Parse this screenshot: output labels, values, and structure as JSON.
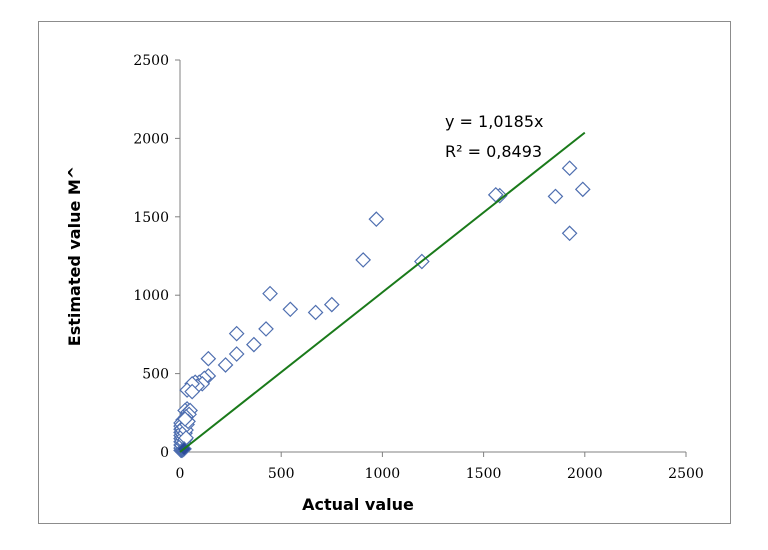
{
  "chart_data": {
    "type": "scatter",
    "xlabel": "Actual value",
    "ylabel": "Estimated value M^",
    "xlim": [
      0,
      2500
    ],
    "ylim": [
      0,
      2500
    ],
    "xticks": [
      "0",
      "500",
      "1000",
      "1500",
      "2000",
      "2500"
    ],
    "yticks": [
      "0",
      "500",
      "1000",
      "1500",
      "2000",
      "2500"
    ],
    "grid": false,
    "marker_color": "#4f6fb0",
    "trendline_color": "#1a7a1a",
    "series": [
      {
        "marker": "diamond-open",
        "points": [
          [
            1580,
            1635
          ],
          [
            1560,
            1640
          ],
          [
            1925,
            1810
          ],
          [
            1990,
            1675
          ],
          [
            1855,
            1630
          ],
          [
            1925,
            1395
          ],
          [
            970,
            1485
          ],
          [
            905,
            1225
          ],
          [
            1195,
            1215
          ],
          [
            445,
            1010
          ],
          [
            545,
            910
          ],
          [
            670,
            890
          ],
          [
            750,
            940
          ],
          [
            280,
            755
          ],
          [
            425,
            785
          ],
          [
            365,
            685
          ],
          [
            280,
            625
          ],
          [
            225,
            555
          ],
          [
            140,
            595
          ],
          [
            140,
            485
          ],
          [
            120,
            470
          ],
          [
            95,
            445
          ],
          [
            75,
            445
          ],
          [
            110,
            435
          ],
          [
            85,
            420
          ],
          [
            60,
            435
          ],
          [
            35,
            395
          ],
          [
            60,
            385
          ],
          [
            35,
            275
          ],
          [
            25,
            265
          ],
          [
            40,
            255
          ],
          [
            50,
            265
          ],
          [
            45,
            240
          ],
          [
            30,
            225
          ],
          [
            15,
            205
          ],
          [
            5,
            185
          ],
          [
            5,
            165
          ],
          [
            5,
            145
          ],
          [
            5,
            125
          ],
          [
            5,
            105
          ],
          [
            5,
            85
          ],
          [
            5,
            65
          ],
          [
            5,
            45
          ],
          [
            5,
            25
          ],
          [
            5,
            10
          ],
          [
            10,
            175
          ],
          [
            10,
            150
          ],
          [
            10,
            120
          ],
          [
            10,
            95
          ],
          [
            10,
            70
          ],
          [
            10,
            40
          ],
          [
            15,
            135
          ],
          [
            15,
            110
          ],
          [
            15,
            85
          ],
          [
            15,
            55
          ],
          [
            20,
            160
          ],
          [
            20,
            100
          ],
          [
            20,
            60
          ],
          [
            25,
            120
          ],
          [
            25,
            80
          ],
          [
            30,
            140
          ],
          [
            30,
            90
          ],
          [
            35,
            175
          ],
          [
            40,
            195
          ],
          [
            25,
            210
          ]
        ]
      },
      {
        "marker": "diamond-filled",
        "points": [
          [
            10,
            10
          ],
          [
            15,
            15
          ],
          [
            20,
            20
          ]
        ]
      }
    ],
    "trendline": {
      "slope": 1.0185,
      "x_range": [
        0,
        2000
      ],
      "equation": "y = 1,0185x",
      "r2": "R² = 0,8493"
    }
  }
}
